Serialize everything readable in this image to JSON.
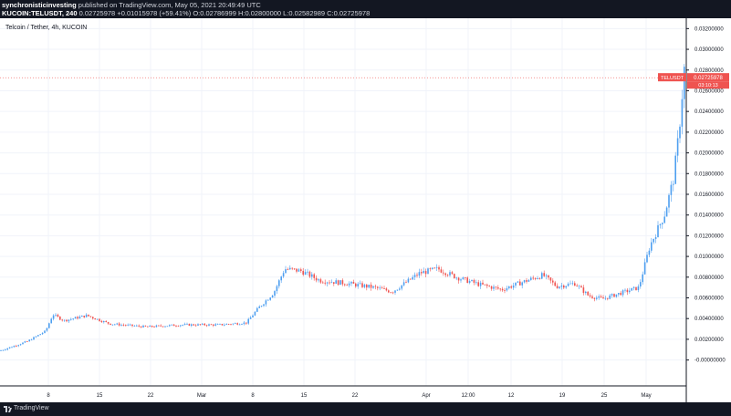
{
  "header": {
    "author": "synchronisticinvesting",
    "published_text": "published on TradingView.com, May 05, 2021 20:49:49 UTC",
    "symbol_line": "KUCOIN:TELUSDT, 240",
    "last": "0.02725978",
    "change": "+0.01015978 (+59.41%)",
    "ohlc": "O:0.02786999 H:0.02800000 L:0.02582989 C:0.02725978"
  },
  "legend": "Telcoin / Tether, 4h, KUCOIN",
  "branding": "TradingView",
  "colors": {
    "up": "#26a69a",
    "up_wick": "#4e9ff0",
    "down": "#ef5350",
    "price_line": "#ef5350",
    "grid": "#f0f3fa",
    "frame": "#131722"
  },
  "chart_data": {
    "type": "candlestick",
    "x_ticks": [
      "8",
      "15",
      "22",
      "Mar",
      "8",
      "15",
      "22",
      "Apr",
      "12:00",
      "12",
      "19",
      "25",
      "May"
    ],
    "y_ticks": [
      "0.03200000",
      "0.03000000",
      "0.02800000",
      "0.02600000",
      "0.02400000",
      "0.02200000",
      "0.02000000",
      "0.01800000",
      "0.01600000",
      "0.01400000",
      "0.01200000",
      "0.01000000",
      "0.00800000",
      "0.00600000",
      "0.00400000",
      "0.00200000",
      "-0.00000000"
    ],
    "ylim": [
      -0.0025,
      0.033
    ],
    "last_price": 0.02725978,
    "price_badge_symbol": "TELUSDT",
    "price_badge_value": "0.02725978",
    "price_badge_timer": "03:10:13",
    "trend": [
      [
        0,
        0.0009
      ],
      [
        30,
        0.0018
      ],
      [
        50,
        0.0028
      ],
      [
        58,
        0.0044
      ],
      [
        70,
        0.0038
      ],
      [
        95,
        0.0043
      ],
      [
        120,
        0.0035
      ],
      [
        160,
        0.0032
      ],
      [
        200,
        0.0034
      ],
      [
        240,
        0.0034
      ],
      [
        270,
        0.0036
      ],
      [
        283,
        0.005
      ],
      [
        300,
        0.0065
      ],
      [
        312,
        0.0088
      ],
      [
        330,
        0.0086
      ],
      [
        350,
        0.0077
      ],
      [
        380,
        0.0074
      ],
      [
        410,
        0.007
      ],
      [
        430,
        0.0066
      ],
      [
        460,
        0.0084
      ],
      [
        480,
        0.0088
      ],
      [
        500,
        0.008
      ],
      [
        525,
        0.0073
      ],
      [
        550,
        0.0068
      ],
      [
        575,
        0.0076
      ],
      [
        595,
        0.0082
      ],
      [
        610,
        0.0071
      ],
      [
        630,
        0.0074
      ],
      [
        645,
        0.0062
      ],
      [
        660,
        0.0059
      ],
      [
        685,
        0.0066
      ],
      [
        700,
        0.007
      ],
      [
        712,
        0.011
      ],
      [
        728,
        0.014
      ],
      [
        738,
        0.0175
      ],
      [
        744,
        0.022
      ],
      [
        750,
        0.0283
      ],
      [
        752,
        0.0273
      ]
    ]
  }
}
